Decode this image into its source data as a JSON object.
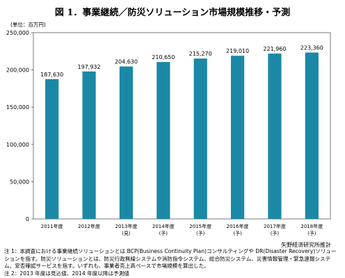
{
  "chart_data": {
    "type": "bar",
    "title": "図 1．事業継続／防災ソリューション市場規模推移・予測",
    "unit": "(単位：百万円)",
    "categories": [
      "2011年度",
      "2012年度",
      "2013年度",
      "2014年度",
      "2015年度",
      "2016年度",
      "2017年度",
      "2018年度"
    ],
    "sublabels": [
      "",
      "",
      "(見)",
      "(予)",
      "(予)",
      "(予)",
      "(予)",
      "(予)"
    ],
    "values": [
      187630,
      197932,
      204630,
      210650,
      215270,
      219010,
      221960,
      223360
    ],
    "data_labels": [
      "187,630",
      "197,932",
      "204,630",
      "210,650",
      "215,270",
      "219,010",
      "221,960",
      "223,360"
    ],
    "yticks": [
      "0",
      "50,000",
      "100,000",
      "150,000",
      "200,000",
      "250,000"
    ],
    "ylim": [
      0,
      250000
    ],
    "bar_color": "#1b89a6",
    "grid": false
  },
  "source": "矢野経済研究所推計",
  "notes": [
    "注 1：本調査における事業継続ソリューションとは BCP(Business Continuity Plan)コンサルティングや DR(Disaster Recovery)ソリューションを指す。防災ソリューションとは、防災行政無線システムや消防指令システム、総合防災システム、災害情報管理・緊急連報システム、安否確認サービスを指す。いずれも、事業者売上高ベースで市場規模を算出した。",
    "注 2：2013 年度は見込値、2014 年度以降は予測値"
  ]
}
